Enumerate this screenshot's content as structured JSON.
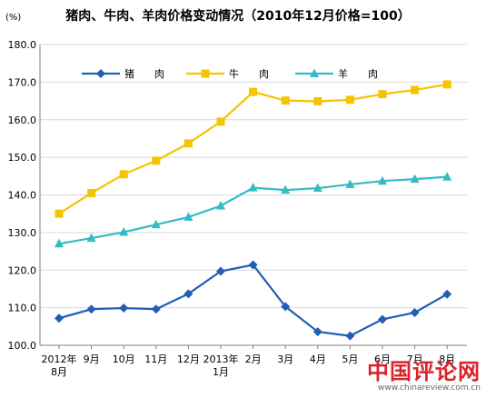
{
  "unit_label": "(%)",
  "watermark": {
    "main": "中国评论网",
    "url": "www.chinareview.com.cn"
  },
  "chart_data": {
    "type": "line",
    "title": "猪肉、牛肉、羊肉价格变动情况（2010年12月价格=100）",
    "xlabel": "",
    "ylabel": "",
    "ylim": [
      100,
      180
    ],
    "yticks": [
      "100.0",
      "110.0",
      "120.0",
      "130.0",
      "140.0",
      "150.0",
      "160.0",
      "170.0",
      "180.0"
    ],
    "grid": true,
    "legend_position": "top",
    "categories": [
      [
        "2012年",
        "8月"
      ],
      [
        "9月"
      ],
      [
        "10月"
      ],
      [
        "11月"
      ],
      [
        "12月"
      ],
      [
        "2013年",
        "1月"
      ],
      [
        "2月"
      ],
      [
        "3月"
      ],
      [
        "4月"
      ],
      [
        "5月"
      ],
      [
        "6月"
      ],
      [
        "7月"
      ],
      [
        "8月"
      ]
    ],
    "series": [
      {
        "name": "猪　　肉",
        "color": "#1f5fb4",
        "marker": "diamond",
        "values": [
          107.2,
          109.6,
          109.9,
          109.6,
          113.7,
          119.7,
          121.4,
          110.3,
          103.6,
          102.5,
          106.9,
          108.7,
          113.6
        ]
      },
      {
        "name": "牛　　肉",
        "color": "#f5c400",
        "marker": "square",
        "values": [
          135.0,
          140.5,
          145.5,
          149.1,
          153.7,
          159.5,
          167.4,
          165.1,
          164.9,
          165.3,
          166.8,
          167.9,
          169.4
        ]
      },
      {
        "name": "羊　　肉",
        "color": "#33bcc4",
        "marker": "triangle",
        "values": [
          127.0,
          128.5,
          130.1,
          132.1,
          134.1,
          137.1,
          141.9,
          141.3,
          141.8,
          142.8,
          143.7,
          144.2,
          144.8
        ]
      }
    ]
  }
}
